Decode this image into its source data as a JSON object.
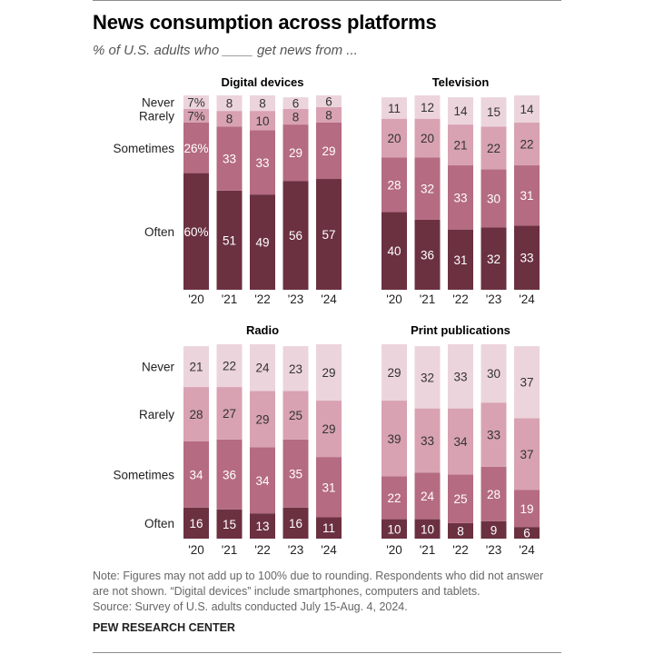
{
  "title": "News consumption across platforms",
  "subtitle": "% of U.S. adults who ____ get news from ...",
  "colors": {
    "Often": "#6b3141",
    "Sometimes": "#b56b82",
    "Rarely": "#d8a2b3",
    "Never": "#ecd4dc",
    "label_dark_bg": "#ffffff",
    "label_light_bg": "#333333"
  },
  "chart_data": [
    {
      "type": "bar",
      "stacked": true,
      "title": "Digital devices",
      "categories": [
        "'20",
        "'21",
        "'22",
        "'23",
        "'24"
      ],
      "series": [
        {
          "name": "Often",
          "values": [
            60,
            51,
            49,
            56,
            57
          ],
          "labels": [
            "60%",
            "51",
            "49",
            "56",
            "57"
          ]
        },
        {
          "name": "Sometimes",
          "values": [
            26,
            33,
            33,
            29,
            29
          ],
          "labels": [
            "26%",
            "33",
            "33",
            "29",
            "29"
          ]
        },
        {
          "name": "Rarely",
          "values": [
            7,
            8,
            10,
            8,
            8
          ],
          "labels": [
            "7%",
            "8",
            "10",
            "8",
            "8"
          ]
        },
        {
          "name": "Never",
          "values": [
            7,
            8,
            8,
            6,
            6
          ],
          "labels": [
            "7%",
            "8",
            "8",
            "6",
            "6"
          ]
        }
      ],
      "show_series_labels": true
    },
    {
      "type": "bar",
      "stacked": true,
      "title": "Television",
      "categories": [
        "'20",
        "'21",
        "'22",
        "'23",
        "'24"
      ],
      "series": [
        {
          "name": "Often",
          "values": [
            40,
            36,
            31,
            32,
            33
          ],
          "labels": [
            "40",
            "36",
            "31",
            "32",
            "33"
          ]
        },
        {
          "name": "Sometimes",
          "values": [
            28,
            32,
            33,
            30,
            31
          ],
          "labels": [
            "28",
            "32",
            "33",
            "30",
            "31"
          ]
        },
        {
          "name": "Rarely",
          "values": [
            20,
            20,
            21,
            22,
            22
          ],
          "labels": [
            "20",
            "20",
            "21",
            "22",
            "22"
          ]
        },
        {
          "name": "Never",
          "values": [
            11,
            12,
            14,
            15,
            14
          ],
          "labels": [
            "11",
            "12",
            "14",
            "15",
            "14"
          ]
        }
      ],
      "show_series_labels": false
    },
    {
      "type": "bar",
      "stacked": true,
      "title": "Radio",
      "categories": [
        "'20",
        "'21",
        "'22",
        "'23",
        "'24"
      ],
      "series": [
        {
          "name": "Often",
          "values": [
            16,
            15,
            13,
            16,
            11
          ],
          "labels": [
            "16",
            "15",
            "13",
            "16",
            "11"
          ]
        },
        {
          "name": "Sometimes",
          "values": [
            34,
            36,
            34,
            35,
            31
          ],
          "labels": [
            "34",
            "36",
            "34",
            "35",
            "31"
          ]
        },
        {
          "name": "Rarely",
          "values": [
            28,
            27,
            29,
            25,
            29
          ],
          "labels": [
            "28",
            "27",
            "29",
            "25",
            "29"
          ]
        },
        {
          "name": "Never",
          "values": [
            21,
            22,
            24,
            23,
            29
          ],
          "labels": [
            "21",
            "22",
            "24",
            "23",
            "29"
          ]
        }
      ],
      "show_series_labels": true
    },
    {
      "type": "bar",
      "stacked": true,
      "title": "Print publications",
      "categories": [
        "'20",
        "'21",
        "'22",
        "'23",
        "'24"
      ],
      "series": [
        {
          "name": "Often",
          "values": [
            10,
            10,
            8,
            9,
            6
          ],
          "labels": [
            "10",
            "10",
            "8",
            "9",
            "6"
          ]
        },
        {
          "name": "Sometimes",
          "values": [
            22,
            24,
            25,
            28,
            19
          ],
          "labels": [
            "22",
            "24",
            "25",
            "28",
            "19"
          ]
        },
        {
          "name": "Rarely",
          "values": [
            39,
            33,
            34,
            33,
            37
          ],
          "labels": [
            "39",
            "33",
            "34",
            "33",
            "37"
          ]
        },
        {
          "name": "Never",
          "values": [
            29,
            32,
            33,
            30,
            37
          ],
          "labels": [
            "29",
            "32",
            "33",
            "30",
            "37"
          ]
        }
      ],
      "show_series_labels": false
    }
  ],
  "note": {
    "line1": "Note: Figures may not add up to 100% due to rounding. Respondents who did not answer",
    "line2": "are not shown. “Digital devices” include smartphones, computers and tablets.",
    "line3": "Source: Survey of U.S. adults conducted July 15-Aug. 4, 2024."
  },
  "brand": "PEW RESEARCH CENTER"
}
